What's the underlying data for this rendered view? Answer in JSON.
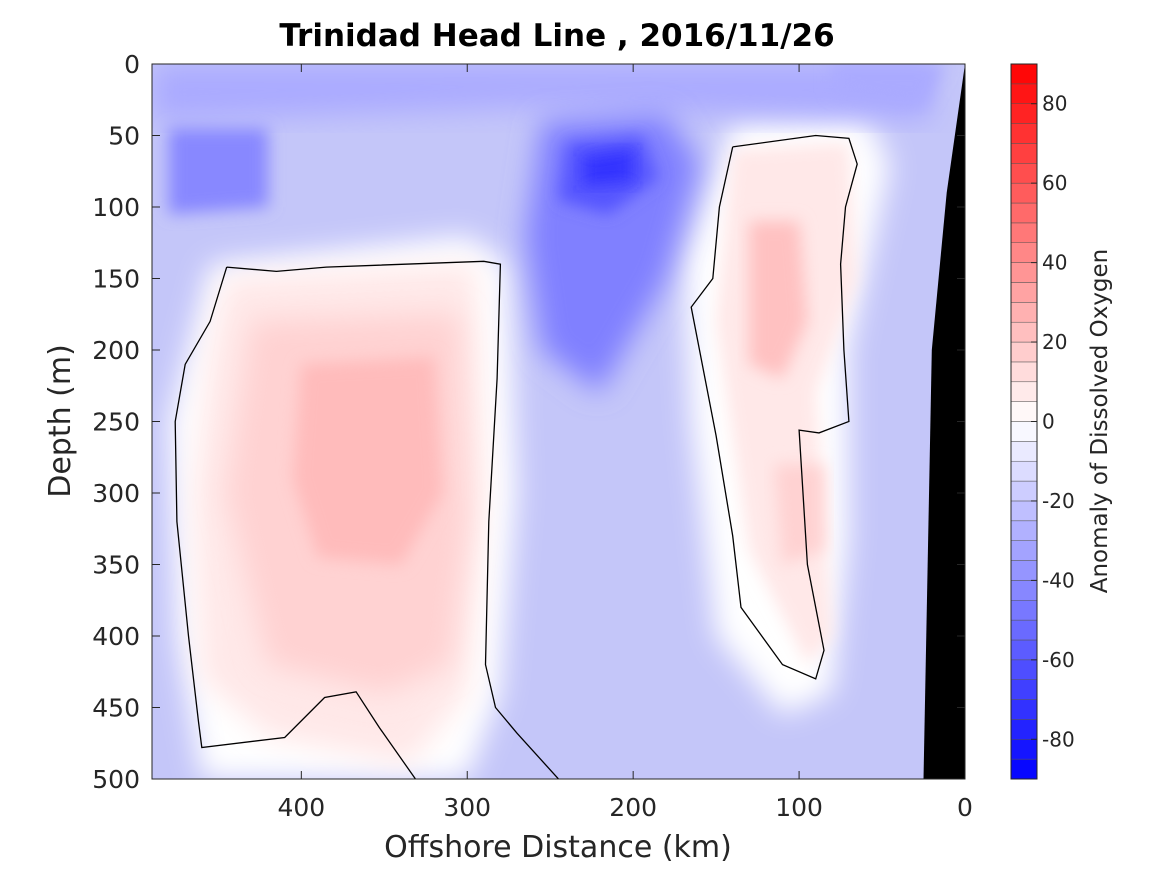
{
  "chart_data": {
    "type": "heatmap",
    "title": "Trinidad Head Line , 2016/11/26",
    "xlabel": "Offshore Distance (km)",
    "ylabel": "Depth (m)",
    "xlim": [
      490,
      0
    ],
    "ylim": [
      0,
      500
    ],
    "x_ticks": [
      400,
      300,
      200,
      100,
      0
    ],
    "y_ticks": [
      0,
      50,
      100,
      150,
      200,
      250,
      300,
      350,
      400,
      450,
      500
    ],
    "colorbar": {
      "label": "Anomaly of Dissolved Oxygen",
      "range": [
        -90,
        90
      ],
      "ticks": [
        -80,
        -60,
        -40,
        -20,
        0,
        20,
        40,
        60,
        80
      ],
      "levels_step": 5,
      "low_color": "#0000ff",
      "mid_color": "#ffffff",
      "high_color": "#ff0000"
    },
    "zero_contour": true,
    "bathymetry_color": "#000000",
    "features": [
      {
        "type": "positive",
        "center_km": 360,
        "center_depth_m": 260,
        "peak_value": 25
      },
      {
        "type": "positive",
        "center_km": 115,
        "center_depth_m": 180,
        "peak_value": 25
      },
      {
        "type": "positive",
        "center_km": 100,
        "center_depth_m": 320,
        "peak_value": 20
      },
      {
        "type": "negative",
        "center_km": 215,
        "center_depth_m": 75,
        "peak_value": -60
      },
      {
        "type": "negative",
        "center_km": 455,
        "center_depth_m": 75,
        "peak_value": -40
      }
    ]
  }
}
